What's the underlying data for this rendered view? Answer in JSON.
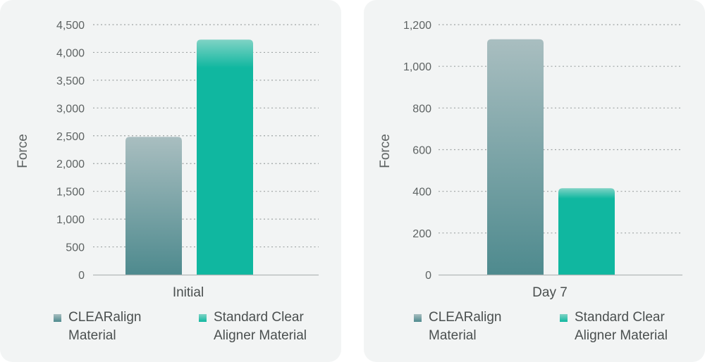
{
  "colors": {
    "clearalign_top": "#a9bec0",
    "clearalign_bottom": "#4e8a8e",
    "standard_top": "#7fd3c5",
    "standard_bottom": "#10b7a0"
  },
  "chart_data": [
    {
      "type": "bar",
      "categories": [
        "Initial"
      ],
      "series": [
        {
          "name": "CLEARalign Material",
          "values": [
            2480
          ]
        },
        {
          "name": "Standard Clear Aligner Material",
          "values": [
            4230
          ]
        }
      ],
      "ylabel": "Force",
      "ylim": [
        0,
        4500
      ],
      "yticks": [
        0,
        500,
        1000,
        1500,
        2000,
        2500,
        3000,
        3500,
        4000,
        4500
      ],
      "ytick_labels": [
        "0",
        "500",
        "1,000",
        "1,500",
        "2,000",
        "2,500",
        "3,000",
        "3,500",
        "4,000",
        "4,500"
      ],
      "grid": true,
      "legend": "bottom"
    },
    {
      "type": "bar",
      "categories": [
        "Day 7"
      ],
      "series": [
        {
          "name": "CLEARalign Material",
          "values": [
            1130
          ]
        },
        {
          "name": "Standard Clear Aligner Material",
          "values": [
            415
          ]
        }
      ],
      "ylabel": "Force",
      "ylim": [
        0,
        1200
      ],
      "yticks": [
        0,
        200,
        400,
        600,
        800,
        1000,
        1200
      ],
      "ytick_labels": [
        "0",
        "200",
        "400",
        "600",
        "800",
        "1,000",
        "1,200"
      ],
      "grid": true,
      "legend": "bottom"
    }
  ],
  "legend": {
    "clearalign_label": "CLEARalign Material",
    "standard_label": "Standard Clear Aligner Material"
  }
}
